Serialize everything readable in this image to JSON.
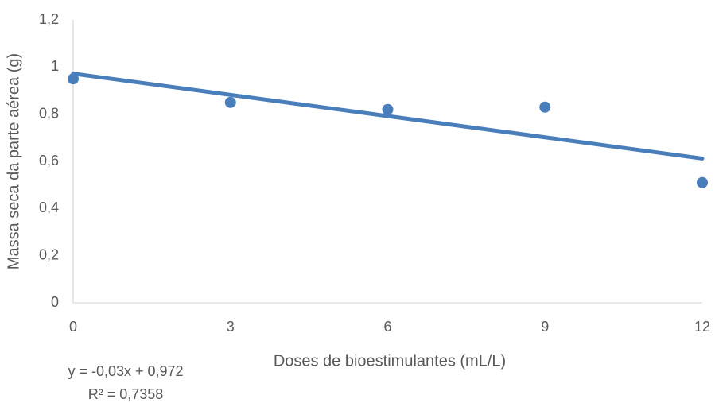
{
  "chart_data": {
    "type": "scatter",
    "x_label": "Doses de bioestimulantes (mL/L)",
    "y_label": "Massa seca da parte aérea (g)",
    "x": [
      0,
      3,
      6,
      9,
      12
    ],
    "values": [
      0.95,
      0.85,
      0.82,
      0.83,
      0.51
    ],
    "color": "#4a7ebb",
    "xlim": [
      0,
      12
    ],
    "xticks": [
      0,
      3,
      6,
      9,
      12
    ],
    "ylim": [
      0,
      1.2
    ],
    "yticks": [
      0,
      {
        "value": 0.2,
        "label": "0,2"
      },
      {
        "value": 0.4,
        "label": "0,4"
      },
      {
        "value": 0.6,
        "label": "0,6"
      },
      {
        "value": 0.8,
        "label": "0,8"
      },
      1,
      {
        "value": 1.2,
        "label": "1,2"
      }
    ],
    "trendline": {
      "slope": -0.03,
      "intercept": 0.972,
      "color": "#4a7ebb",
      "equation": "y = -0,03x + 0,972",
      "r2": "R² = 0,7358"
    }
  }
}
